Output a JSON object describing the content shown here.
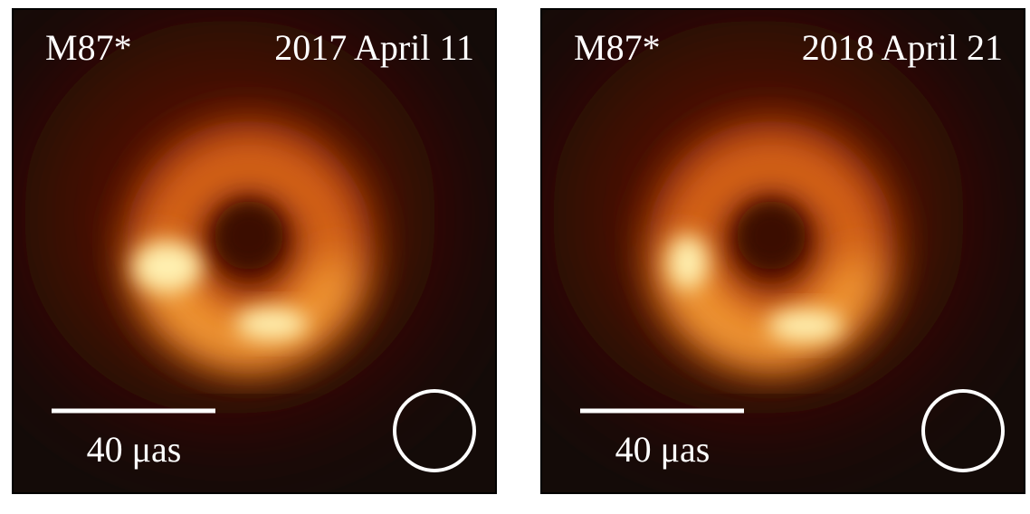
{
  "panels": [
    {
      "source": "M87*",
      "date": "2017 April 11",
      "scale_label": "40 μas"
    },
    {
      "source": "M87*",
      "date": "2018 April 21",
      "scale_label": "40 μas"
    }
  ]
}
